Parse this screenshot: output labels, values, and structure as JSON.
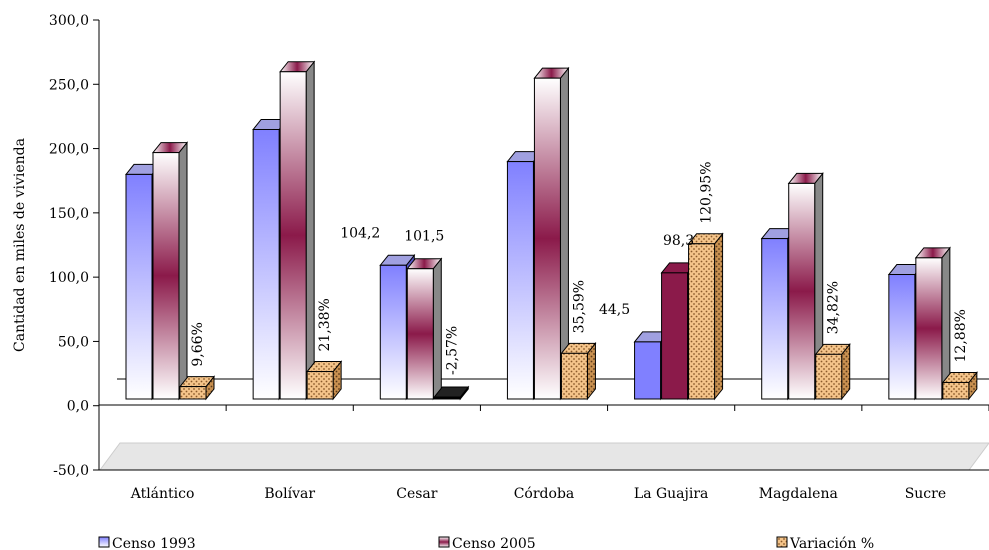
{
  "chart_data": {
    "type": "bar",
    "ylabel": "Cantidad en miles de vivienda",
    "ylim": [
      -50,
      300
    ],
    "y_ticks": [
      "300,0",
      "250,0",
      "200,0",
      "150,0",
      "100,0",
      "50,0",
      "0,0",
      "-50,0"
    ],
    "categories": [
      "Atlántico",
      "Bolívar",
      "Cesar",
      "Córdoba",
      "La Guajira",
      "Magdalena",
      "Sucre"
    ],
    "series": [
      {
        "name": "Censo 1993",
        "values": [
          175,
          210,
          104.2,
          185,
          44.5,
          125,
          97
        ],
        "labels": [
          "",
          "",
          "104,2",
          "",
          "44,5",
          "",
          ""
        ]
      },
      {
        "name": "Censo 2005",
        "values": [
          192,
          255,
          101.5,
          250,
          98.3,
          168,
          110
        ],
        "labels": [
          "",
          "",
          "101,5",
          "",
          "98,3",
          "",
          ""
        ]
      },
      {
        "name": "Variación %",
        "values": [
          9.66,
          21.38,
          -2.57,
          35.59,
          120.95,
          34.82,
          12.88
        ],
        "labels": [
          "9,66%",
          "21,38%",
          "-2,57%",
          "35,59%",
          "120,95%",
          "34,82%",
          "12,88%"
        ]
      }
    ],
    "legend_position": "bottom",
    "grid": false,
    "colors": {
      "censo1993_light": "#ffffff",
      "censo1993_dark": "#8080ff",
      "censo2005_light": "#ffffff",
      "censo2005_dark": "#8b1a4a",
      "variacion_fill": "#f4c48a",
      "variacion_dot": "#8a5a2a"
    }
  }
}
